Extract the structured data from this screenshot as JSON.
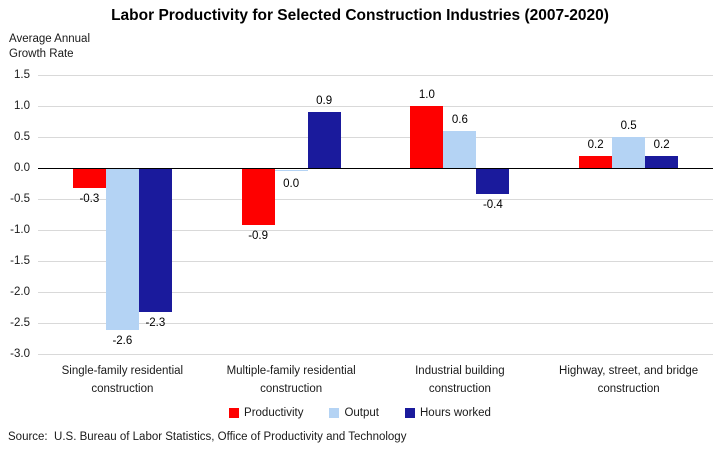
{
  "title": "Labor Productivity for Selected Construction Industries (2007-2020)",
  "y_axis_label_lines": [
    "Average Annual",
    "Growth Rate"
  ],
  "source": "Source:  U.S. Bureau of Labor Statistics, Office of Productivity and Technology",
  "colors": {
    "productivity_red": "#FE0000",
    "output_light_blue": "#B4D3F4",
    "hours_worked_dark_blue": "#1A1A9C",
    "gridline_gray": "#D9D9D9",
    "zero_axis_black": "#000000"
  },
  "chart_data": {
    "type": "bar",
    "title": "Labor Productivity for Selected Construction Industries (2007-2020)",
    "xlabel": "",
    "ylabel": "Average Annual Growth Rate",
    "ylim": [
      -3.0,
      1.5
    ],
    "ytick_step": 0.5,
    "yticks": [
      1.5,
      1.0,
      0.5,
      0.0,
      -0.5,
      -1.0,
      -1.5,
      -2.0,
      -2.5,
      -3.0
    ],
    "grid": true,
    "data_labels": true,
    "legend_position": "bottom",
    "categories": [
      "Single-family residential construction",
      "Multiple-family residential construction",
      "Industrial building construction",
      "Highway, street, and bridge construction"
    ],
    "series": [
      {
        "name": "Productivity",
        "color": "#FE0000",
        "values": [
          -0.3,
          -0.9,
          1.0,
          0.2
        ]
      },
      {
        "name": "Output",
        "color": "#B4D3F4",
        "values": [
          -2.6,
          0.0,
          0.6,
          0.5
        ]
      },
      {
        "name": "Hours worked",
        "color": "#1A1A9C",
        "values": [
          -2.3,
          0.9,
          -0.4,
          0.2
        ]
      }
    ]
  }
}
